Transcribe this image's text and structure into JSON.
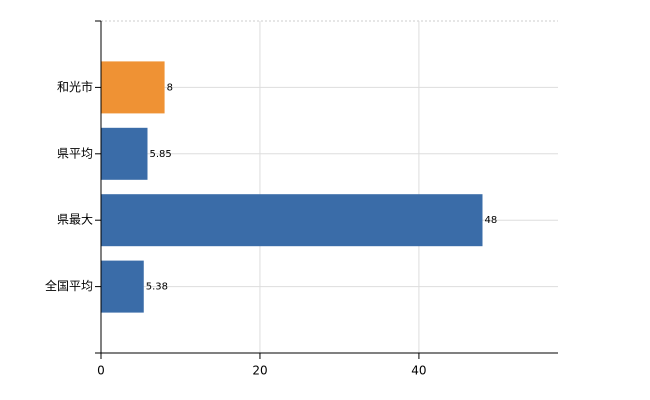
{
  "chart_data": {
    "type": "hbar",
    "categories": [
      "和光市",
      "県平均",
      "県最大",
      "全国平均"
    ],
    "values": [
      8,
      5.85,
      48,
      5.38
    ],
    "colors": [
      "#ef9234",
      "#3a6ca8",
      "#3a6ca8",
      "#3a6ca8"
    ],
    "xlim": [
      0,
      57.5
    ],
    "xticks": [
      0,
      20,
      40
    ],
    "grid": true
  }
}
